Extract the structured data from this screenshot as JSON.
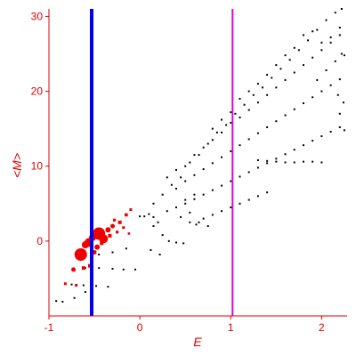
{
  "chart_data": {
    "type": "scatter",
    "title": "",
    "xlabel": "E",
    "ylabel": "<M>",
    "xlim": [
      -1.0,
      2.28
    ],
    "ylim": [
      -10,
      31
    ],
    "xticks": [
      {
        "value": -1,
        "label": "-1"
      },
      {
        "value": 0,
        "label": "0"
      },
      {
        "value": 1,
        "label": "1"
      },
      {
        "value": 2,
        "label": "2"
      }
    ],
    "yticks": [
      {
        "value": 0,
        "label": "0"
      },
      {
        "value": 10,
        "label": "10"
      },
      {
        "value": 20,
        "label": "20"
      },
      {
        "value": 30,
        "label": "30"
      }
    ],
    "vlines": [
      {
        "x": -0.53,
        "color": "#0000ee"
      },
      {
        "x": 1.02,
        "color": "#dd00dd"
      }
    ],
    "colors": {
      "axes": "#e00000",
      "black_points": "#000000",
      "red_points": "#ee0000"
    },
    "red_points": [
      [
        -0.65,
        -1.8,
        7
      ],
      [
        -0.45,
        1.0,
        7
      ],
      [
        -0.56,
        -0.2,
        5
      ],
      [
        -0.52,
        0.5,
        4
      ],
      [
        -0.6,
        -0.5,
        4
      ],
      [
        -0.4,
        0.3,
        5
      ],
      [
        -0.35,
        1.5,
        3
      ],
      [
        -0.47,
        -0.8,
        3
      ],
      [
        -0.73,
        -3.8,
        2.5
      ],
      [
        -0.62,
        -3.6,
        2
      ],
      [
        -0.55,
        -3.3,
        2
      ],
      [
        -0.3,
        2.0,
        2.5
      ],
      [
        -0.22,
        2.5,
        2
      ],
      [
        -0.15,
        3.5,
        1.8
      ],
      [
        -0.1,
        4.2,
        1.5
      ],
      [
        -0.5,
        -1.5,
        2.5
      ],
      [
        -0.42,
        -0.3,
        2
      ],
      [
        -0.33,
        0.7,
        2
      ],
      [
        -0.25,
        1.2,
        1.6
      ],
      [
        -0.82,
        -5.7,
        1.5
      ],
      [
        -0.7,
        -5.9,
        1.5
      ],
      [
        -0.28,
        2.8,
        1.6
      ],
      [
        -0.18,
        1.8,
        1.5
      ],
      [
        -0.12,
        1.0,
        1.3
      ]
    ],
    "black_points": [
      [
        -0.92,
        -8.0
      ],
      [
        -0.85,
        -8.1
      ],
      [
        -0.72,
        -7.6
      ],
      [
        -0.6,
        -6.8
      ],
      [
        -0.75,
        -5.8
      ],
      [
        -0.62,
        -5.9
      ],
      [
        -0.48,
        -6.0
      ],
      [
        -0.35,
        -6.1
      ],
      [
        -0.6,
        -3.6
      ],
      [
        -0.45,
        -3.6
      ],
      [
        -0.3,
        -3.7
      ],
      [
        -0.18,
        -3.8
      ],
      [
        -0.05,
        -3.8
      ],
      [
        -0.6,
        -2.0
      ],
      [
        -0.45,
        -1.8
      ],
      [
        -0.3,
        -1.5
      ],
      [
        -0.15,
        -1.0
      ],
      [
        0.0,
        3.3
      ],
      [
        0.05,
        3.3
      ],
      [
        0.1,
        3.6
      ],
      [
        0.15,
        3.2
      ],
      [
        0.25,
        0.8
      ],
      [
        0.32,
        0.0
      ],
      [
        0.4,
        -0.2
      ],
      [
        0.48,
        -0.3
      ],
      [
        0.22,
        -1.8
      ],
      [
        0.12,
        -1.2
      ],
      [
        0.15,
        2.0
      ],
      [
        0.2,
        2.5
      ],
      [
        0.3,
        4.0
      ],
      [
        0.4,
        4.5
      ],
      [
        0.5,
        5.5
      ],
      [
        0.6,
        6.2
      ],
      [
        0.45,
        3.2
      ],
      [
        0.55,
        3.8
      ],
      [
        0.65,
        2.5
      ],
      [
        0.75,
        2.0
      ],
      [
        0.15,
        5.0
      ],
      [
        0.25,
        6.2
      ],
      [
        0.35,
        7.5
      ],
      [
        0.45,
        8.5
      ],
      [
        0.55,
        10.5
      ],
      [
        0.65,
        11.5
      ],
      [
        0.75,
        13.0
      ],
      [
        0.85,
        14.5
      ],
      [
        0.95,
        15.5
      ],
      [
        1.05,
        17.0
      ],
      [
        1.15,
        18.2
      ],
      [
        1.25,
        19.5
      ],
      [
        1.35,
        20.5
      ],
      [
        1.45,
        21.8
      ],
      [
        1.55,
        23.0
      ],
      [
        1.65,
        24.2
      ],
      [
        1.75,
        25.5
      ],
      [
        1.85,
        26.8
      ],
      [
        1.95,
        28.2
      ],
      [
        2.05,
        29.5
      ],
      [
        2.15,
        30.5
      ],
      [
        2.22,
        31.0
      ],
      [
        0.3,
        8.5
      ],
      [
        0.4,
        9.5
      ],
      [
        0.5,
        10.0
      ],
      [
        0.6,
        11.5
      ],
      [
        0.7,
        12.5
      ],
      [
        0.8,
        13.5
      ],
      [
        0.9,
        14.5
      ],
      [
        1.0,
        15.8
      ],
      [
        1.1,
        16.5
      ],
      [
        1.2,
        17.5
      ],
      [
        1.3,
        18.5
      ],
      [
        1.4,
        19.5
      ],
      [
        1.5,
        20.5
      ],
      [
        1.6,
        21.5
      ],
      [
        1.7,
        22.5
      ],
      [
        1.8,
        23.5
      ],
      [
        1.9,
        24.5
      ],
      [
        2.0,
        25.5
      ],
      [
        2.1,
        26.5
      ],
      [
        2.2,
        27.5
      ],
      [
        0.4,
        7.0
      ],
      [
        0.5,
        8.0
      ],
      [
        0.6,
        8.8
      ],
      [
        0.7,
        9.6
      ],
      [
        0.8,
        10.4
      ],
      [
        0.9,
        11.2
      ],
      [
        1.0,
        12.0
      ],
      [
        1.1,
        12.8
      ],
      [
        1.2,
        13.6
      ],
      [
        1.3,
        14.4
      ],
      [
        1.4,
        15.2
      ],
      [
        1.5,
        16.0
      ],
      [
        1.6,
        16.8
      ],
      [
        1.7,
        17.6
      ],
      [
        1.8,
        18.4
      ],
      [
        1.9,
        19.2
      ],
      [
        2.0,
        20.0
      ],
      [
        2.1,
        20.8
      ],
      [
        2.2,
        21.6
      ],
      [
        0.5,
        5.0
      ],
      [
        0.6,
        5.6
      ],
      [
        0.7,
        6.2
      ],
      [
        0.8,
        6.8
      ],
      [
        0.9,
        7.4
      ],
      [
        1.0,
        8.0
      ],
      [
        1.1,
        8.6
      ],
      [
        1.2,
        9.2
      ],
      [
        1.3,
        9.8
      ],
      [
        1.4,
        10.4
      ],
      [
        1.5,
        11.0
      ],
      [
        1.6,
        11.6
      ],
      [
        1.7,
        12.2
      ],
      [
        1.8,
        12.8
      ],
      [
        1.9,
        13.4
      ],
      [
        2.0,
        14.0
      ],
      [
        2.1,
        14.6
      ],
      [
        2.2,
        15.2
      ],
      [
        0.7,
        3.0
      ],
      [
        0.8,
        3.5
      ],
      [
        0.9,
        4.0
      ],
      [
        1.0,
        4.5
      ],
      [
        1.1,
        5.0
      ],
      [
        1.2,
        5.5
      ],
      [
        1.3,
        6.0
      ],
      [
        1.4,
        6.5
      ],
      [
        0.55,
        2.5
      ],
      [
        0.62,
        2.2
      ],
      [
        1.3,
        10.8
      ],
      [
        1.4,
        10.7
      ],
      [
        1.5,
        10.6
      ],
      [
        1.6,
        10.5
      ],
      [
        1.7,
        10.5
      ],
      [
        1.8,
        10.6
      ],
      [
        1.9,
        10.6
      ],
      [
        2.0,
        10.5
      ],
      [
        1.8,
        27.5
      ],
      [
        1.9,
        28.0
      ],
      [
        2.0,
        26.5
      ],
      [
        2.1,
        27.2
      ],
      [
        2.2,
        28.5
      ],
      [
        2.22,
        25.0
      ],
      [
        2.15,
        24.0
      ],
      [
        2.05,
        22.8
      ],
      [
        1.95,
        21.5
      ],
      [
        2.18,
        19.5
      ],
      [
        2.25,
        24.8
      ],
      [
        2.24,
        18.5
      ],
      [
        2.2,
        17.0
      ],
      [
        2.25,
        14.8
      ],
      [
        1.1,
        19.0
      ],
      [
        1.2,
        20.0
      ],
      [
        1.3,
        21.0
      ],
      [
        1.5,
        23.5
      ],
      [
        1.6,
        24.8
      ],
      [
        1.7,
        25.8
      ],
      [
        1.4,
        22.2
      ],
      [
        0.9,
        16.2
      ],
      [
        1.0,
        17.2
      ],
      [
        0.8,
        15.0
      ]
    ]
  }
}
